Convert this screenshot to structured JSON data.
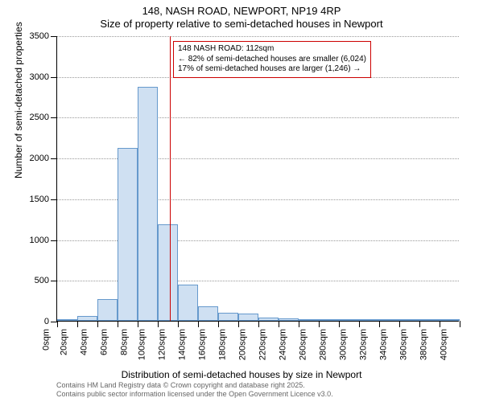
{
  "title_line1": "148, NASH ROAD, NEWPORT, NP19 4RP",
  "title_line2": "Size of property relative to semi-detached houses in Newport",
  "y_axis_title": "Number of semi-detached properties",
  "x_axis_title": "Distribution of semi-detached houses by size in Newport",
  "footer_line1": "Contains HM Land Registry data © Crown copyright and database right 2025.",
  "footer_line2": "Contains public sector information licensed under the Open Government Licence v3.0.",
  "annotation": {
    "line1": "148 NASH ROAD: 112sqm",
    "line2": "← 82% of semi-detached houses are smaller (6,024)",
    "line3": "17% of semi-detached houses are larger (1,246) →"
  },
  "histogram": {
    "type": "histogram",
    "bar_fill": "#cfe0f2",
    "bar_border": "#6699cc",
    "grid_color": "#999999",
    "vline_color": "#cc0000",
    "vline_x": 112,
    "background_color": "#ffffff",
    "x_min": 0,
    "x_max": 400,
    "y_min": 0,
    "y_max": 3500,
    "y_ticks": [
      0,
      500,
      1000,
      1500,
      2000,
      2500,
      3000,
      3500
    ],
    "x_ticks": [
      0,
      20,
      40,
      60,
      80,
      100,
      120,
      140,
      160,
      180,
      200,
      220,
      240,
      260,
      280,
      300,
      320,
      340,
      360,
      380,
      400
    ],
    "x_tick_unit": "sqm",
    "bin_width": 20,
    "bins": [
      {
        "x": 0,
        "count": 20
      },
      {
        "x": 20,
        "count": 60
      },
      {
        "x": 40,
        "count": 270
      },
      {
        "x": 60,
        "count": 2120
      },
      {
        "x": 80,
        "count": 2870
      },
      {
        "x": 100,
        "count": 1180
      },
      {
        "x": 120,
        "count": 440
      },
      {
        "x": 140,
        "count": 180
      },
      {
        "x": 160,
        "count": 100
      },
      {
        "x": 180,
        "count": 90
      },
      {
        "x": 200,
        "count": 35
      },
      {
        "x": 220,
        "count": 30
      },
      {
        "x": 240,
        "count": 20
      },
      {
        "x": 260,
        "count": 18
      },
      {
        "x": 280,
        "count": 10
      },
      {
        "x": 300,
        "count": 8
      },
      {
        "x": 320,
        "count": 5
      },
      {
        "x": 340,
        "count": 5
      },
      {
        "x": 360,
        "count": 3
      },
      {
        "x": 380,
        "count": 2
      }
    ],
    "title_fontsize": 13,
    "label_fontsize": 12,
    "tick_fontsize": 11,
    "annotation_fontsize": 10
  }
}
